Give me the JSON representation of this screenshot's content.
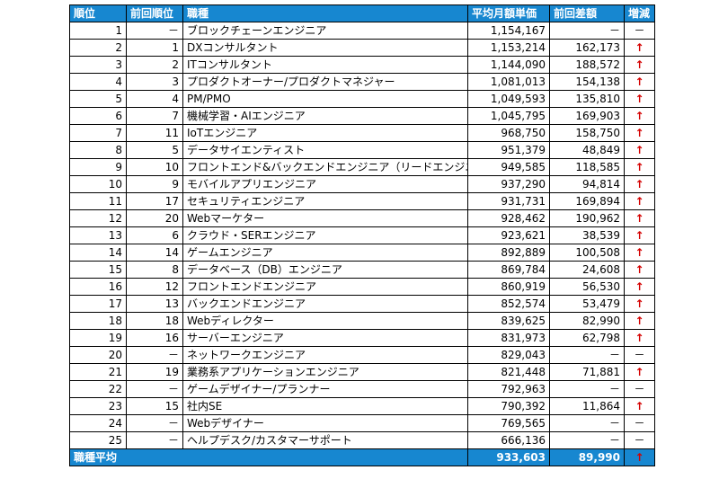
{
  "headers": [
    "順位",
    "前回順位",
    "職種",
    "平均月額単価",
    "前回差額",
    "増減"
  ],
  "rows": [
    {
      "rank": "1",
      "prev": "－",
      "job": "ブロックチェーンエンジニア",
      "price": "1,154,167",
      "diff": "－",
      "change": "－"
    },
    {
      "rank": "2",
      "prev": "1",
      "job": "DXコンサルタント",
      "price": "1,153,214",
      "diff": "162,173",
      "change": "↑"
    },
    {
      "rank": "3",
      "prev": "2",
      "job": "ITコンサルタント",
      "price": "1,144,090",
      "diff": "188,572",
      "change": "↑"
    },
    {
      "rank": "4",
      "prev": "3",
      "job": "プロダクトオーナー/プロダクトマネジャー",
      "price": "1,081,013",
      "diff": "154,138",
      "change": "↑"
    },
    {
      "rank": "5",
      "prev": "4",
      "job": "PM/PMO",
      "price": "1,049,593",
      "diff": "135,810",
      "change": "↑"
    },
    {
      "rank": "6",
      "prev": "7",
      "job": "機械学習・AIエンジニア",
      "price": "1,045,795",
      "diff": "169,903",
      "change": "↑"
    },
    {
      "rank": "7",
      "prev": "11",
      "job": "IoTエンジニア",
      "price": "968,750",
      "diff": "158,750",
      "change": "↑"
    },
    {
      "rank": "8",
      "prev": "5",
      "job": "データサイエンティスト",
      "price": "951,379",
      "diff": "48,849",
      "change": "↑"
    },
    {
      "rank": "9",
      "prev": "10",
      "job": "フロントエンド&バックエンドエンジニア（リードエンジニア）",
      "price": "949,585",
      "diff": "118,585",
      "change": "↑"
    },
    {
      "rank": "10",
      "prev": "9",
      "job": "モバイルアプリエンジニア",
      "price": "937,290",
      "diff": "94,814",
      "change": "↑"
    },
    {
      "rank": "11",
      "prev": "17",
      "job": "セキュリティエンジニア",
      "price": "931,731",
      "diff": "169,894",
      "change": "↑"
    },
    {
      "rank": "12",
      "prev": "20",
      "job": "Webマーケター",
      "price": "928,462",
      "diff": "190,962",
      "change": "↑"
    },
    {
      "rank": "13",
      "prev": "6",
      "job": "クラウド・SERエンジニア",
      "price": "923,621",
      "diff": "38,539",
      "change": "↑"
    },
    {
      "rank": "14",
      "prev": "14",
      "job": "ゲームエンジニア",
      "price": "892,889",
      "diff": "100,508",
      "change": "↑"
    },
    {
      "rank": "15",
      "prev": "8",
      "job": "データベース（DB）エンジニア",
      "price": "869,784",
      "diff": "24,608",
      "change": "↑"
    },
    {
      "rank": "16",
      "prev": "12",
      "job": "フロントエンドエンジニア",
      "price": "860,919",
      "diff": "56,530",
      "change": "↑"
    },
    {
      "rank": "17",
      "prev": "13",
      "job": "バックエンドエンジニア",
      "price": "852,574",
      "diff": "53,479",
      "change": "↑"
    },
    {
      "rank": "18",
      "prev": "18",
      "job": "Webディレクター",
      "price": "839,625",
      "diff": "82,990",
      "change": "↑"
    },
    {
      "rank": "19",
      "prev": "16",
      "job": "サーバーエンジニア",
      "price": "831,973",
      "diff": "62,798",
      "change": "↑"
    },
    {
      "rank": "20",
      "prev": "－",
      "job": "ネットワークエンジニア",
      "price": "829,043",
      "diff": "－",
      "change": "－"
    },
    {
      "rank": "21",
      "prev": "19",
      "job": "業務系アプリケーションエンジニア",
      "price": "821,448",
      "diff": "71,881",
      "change": "↑"
    },
    {
      "rank": "22",
      "prev": "－",
      "job": "ゲームデザイナー/プランナー",
      "price": "792,963",
      "diff": "－",
      "change": "－"
    },
    {
      "rank": "23",
      "prev": "15",
      "job": "社内SE",
      "price": "790,392",
      "diff": "11,864",
      "change": "↑"
    },
    {
      "rank": "24",
      "prev": "－",
      "job": "Webデザイナー",
      "price": "769,565",
      "diff": "－",
      "change": "－"
    },
    {
      "rank": "25",
      "prev": "－",
      "job": "ヘルプデスク/カスタマーサポート",
      "price": "666,136",
      "diff": "－",
      "change": "－"
    }
  ],
  "footer": {
    "label": "職種平均",
    "price": "933,603",
    "diff": "89,990",
    "change": "↑"
  },
  "colors": {
    "header_bg": "#1787d0",
    "header_text": "#ffffff",
    "up_arrow": "#d40000"
  }
}
